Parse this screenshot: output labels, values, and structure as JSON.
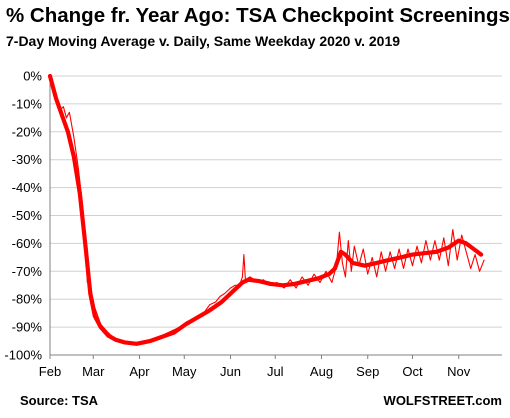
{
  "title": "% Change fr. Year Ago: TSA Checkpoint Screenings",
  "subtitle": "7-Day Moving Average v. Daily, Same Weekday 2020 v. 2019",
  "source": "Source: TSA",
  "brand": "WOLFSTREET.com",
  "colors": {
    "line": "#ff0000",
    "grid": "#d0d0d0",
    "axis": "#808080"
  },
  "chart_data": {
    "type": "line",
    "x_ticks": [
      "Feb",
      "Mar",
      "Apr",
      "May",
      "Jun",
      "Jul",
      "Aug",
      "Sep",
      "Oct",
      "Nov"
    ],
    "y_ticks": [
      "0%",
      "-10%",
      "-20%",
      "-30%",
      "-40%",
      "-50%",
      "-60%",
      "-70%",
      "-80%",
      "-90%",
      "-100%"
    ],
    "ylim": [
      -100,
      0
    ],
    "xlim": [
      "2020-02-01",
      "2020-11-30"
    ],
    "grid": true,
    "series": [
      {
        "style": "thin",
        "points": [
          [
            "2020-02-01",
            0
          ],
          [
            "2020-02-04",
            -6
          ],
          [
            "2020-02-06",
            -9
          ],
          [
            "2020-02-08",
            -12
          ],
          [
            "2020-02-10",
            -11
          ],
          [
            "2020-02-12",
            -15
          ],
          [
            "2020-02-14",
            -13
          ],
          [
            "2020-02-17",
            -22
          ],
          [
            "2020-02-20",
            -33
          ],
          [
            "2020-02-23",
            -47
          ],
          [
            "2020-02-25",
            -62
          ],
          [
            "2020-02-26",
            -74
          ],
          [
            "2020-02-27",
            -69
          ],
          [
            "2020-02-29",
            -78
          ],
          [
            "2020-03-02",
            -83
          ],
          [
            "2020-03-06",
            -89
          ],
          [
            "2020-03-11",
            -92
          ],
          [
            "2020-03-15",
            -94
          ],
          [
            "2020-03-20",
            -95
          ],
          [
            "2020-03-27",
            -96
          ],
          [
            "2020-04-04",
            -95
          ],
          [
            "2020-04-12",
            -94
          ],
          [
            "2020-04-20",
            -92
          ],
          [
            "2020-04-28",
            -90
          ],
          [
            "2020-05-03",
            -88
          ],
          [
            "2020-05-08",
            -87
          ],
          [
            "2020-05-14",
            -85
          ],
          [
            "2020-05-18",
            -82
          ],
          [
            "2020-05-22",
            -81
          ],
          [
            "2020-05-25",
            -79
          ],
          [
            "2020-05-28",
            -78
          ],
          [
            "2020-06-01",
            -76
          ],
          [
            "2020-06-04",
            -75
          ],
          [
            "2020-06-07",
            -75
          ],
          [
            "2020-06-09",
            -72
          ],
          [
            "2020-06-10",
            -64
          ],
          [
            "2020-06-11",
            -73
          ],
          [
            "2020-06-14",
            -72
          ],
          [
            "2020-06-17",
            -73
          ],
          [
            "2020-06-20",
            -74
          ],
          [
            "2020-06-23",
            -73
          ],
          [
            "2020-06-27",
            -75
          ],
          [
            "2020-07-02",
            -74
          ],
          [
            "2020-07-07",
            -76
          ],
          [
            "2020-07-11",
            -73
          ],
          [
            "2020-07-15",
            -76
          ],
          [
            "2020-07-19",
            -72
          ],
          [
            "2020-07-23",
            -75
          ],
          [
            "2020-07-27",
            -71
          ],
          [
            "2020-07-31",
            -74
          ],
          [
            "2020-08-04",
            -70
          ],
          [
            "2020-08-08",
            -74
          ],
          [
            "2020-08-11",
            -68
          ],
          [
            "2020-08-13",
            -56
          ],
          [
            "2020-08-15",
            -67
          ],
          [
            "2020-08-17",
            -72
          ],
          [
            "2020-08-19",
            -59
          ],
          [
            "2020-08-21",
            -70
          ],
          [
            "2020-08-23",
            -61
          ],
          [
            "2020-08-26",
            -68
          ],
          [
            "2020-08-29",
            -62
          ],
          [
            "2020-09-01",
            -71
          ],
          [
            "2020-09-04",
            -65
          ],
          [
            "2020-09-07",
            -72
          ],
          [
            "2020-09-10",
            -63
          ],
          [
            "2020-09-13",
            -70
          ],
          [
            "2020-09-16",
            -63
          ],
          [
            "2020-09-19",
            -69
          ],
          [
            "2020-09-22",
            -62
          ],
          [
            "2020-09-25",
            -69
          ],
          [
            "2020-09-28",
            -62
          ],
          [
            "2020-10-01",
            -68
          ],
          [
            "2020-10-04",
            -61
          ],
          [
            "2020-10-07",
            -67
          ],
          [
            "2020-10-10",
            -59
          ],
          [
            "2020-10-13",
            -66
          ],
          [
            "2020-10-16",
            -59
          ],
          [
            "2020-10-19",
            -66
          ],
          [
            "2020-10-22",
            -58
          ],
          [
            "2020-10-25",
            -68
          ],
          [
            "2020-10-28",
            -55
          ],
          [
            "2020-10-31",
            -66
          ],
          [
            "2020-11-03",
            -57
          ],
          [
            "2020-11-06",
            -63
          ],
          [
            "2020-11-09",
            -69
          ],
          [
            "2020-11-12",
            -64
          ],
          [
            "2020-11-15",
            -70
          ],
          [
            "2020-11-18",
            -66
          ]
        ]
      },
      {
        "style": "thick",
        "points": [
          [
            "2020-02-01",
            0
          ],
          [
            "2020-02-05",
            -8
          ],
          [
            "2020-02-09",
            -14
          ],
          [
            "2020-02-13",
            -20
          ],
          [
            "2020-02-17",
            -29
          ],
          [
            "2020-02-21",
            -42
          ],
          [
            "2020-02-25",
            -62
          ],
          [
            "2020-02-28",
            -78
          ],
          [
            "2020-03-02",
            -86
          ],
          [
            "2020-03-06",
            -90
          ],
          [
            "2020-03-11",
            -93
          ],
          [
            "2020-03-16",
            -94.5
          ],
          [
            "2020-03-22",
            -95.5
          ],
          [
            "2020-03-30",
            -96
          ],
          [
            "2020-04-08",
            -95
          ],
          [
            "2020-04-16",
            -93.5
          ],
          [
            "2020-04-24",
            -92
          ],
          [
            "2020-05-02",
            -89
          ],
          [
            "2020-05-10",
            -86.5
          ],
          [
            "2020-05-18",
            -84
          ],
          [
            "2020-05-26",
            -81
          ],
          [
            "2020-06-03",
            -77
          ],
          [
            "2020-06-09",
            -74
          ],
          [
            "2020-06-13",
            -73
          ],
          [
            "2020-06-20",
            -73.5
          ],
          [
            "2020-06-28",
            -74.5
          ],
          [
            "2020-07-06",
            -75
          ],
          [
            "2020-07-14",
            -74.5
          ],
          [
            "2020-07-22",
            -73.5
          ],
          [
            "2020-07-30",
            -72.5
          ],
          [
            "2020-08-06",
            -71
          ],
          [
            "2020-08-10",
            -69
          ],
          [
            "2020-08-14",
            -63
          ],
          [
            "2020-08-17",
            -64
          ],
          [
            "2020-08-22",
            -67
          ],
          [
            "2020-08-30",
            -68
          ],
          [
            "2020-09-07",
            -67
          ],
          [
            "2020-09-15",
            -66
          ],
          [
            "2020-09-23",
            -65
          ],
          [
            "2020-10-01",
            -64
          ],
          [
            "2020-10-09",
            -63.5
          ],
          [
            "2020-10-17",
            -63
          ],
          [
            "2020-10-25",
            -61.5
          ],
          [
            "2020-11-01",
            -59
          ],
          [
            "2020-11-06",
            -60
          ],
          [
            "2020-11-11",
            -62
          ],
          [
            "2020-11-16",
            -64
          ]
        ]
      }
    ]
  }
}
